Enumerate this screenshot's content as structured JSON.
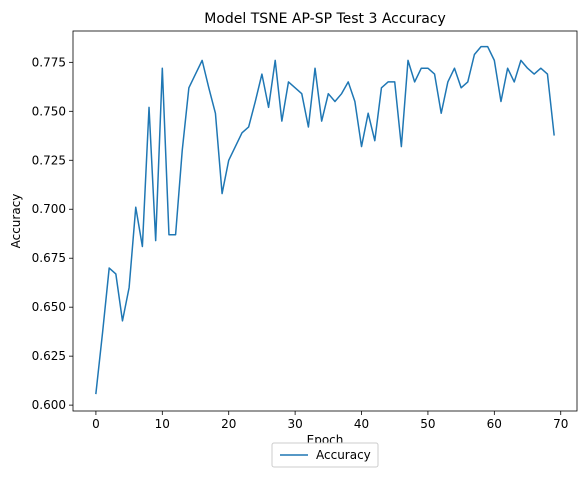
{
  "chart_data": {
    "type": "line",
    "title": "Model TSNE AP-SP Test 3 Accuracy",
    "xlabel": "Epoch",
    "ylabel": "Accuracy",
    "xlim": [
      -3.45,
      72.45
    ],
    "ylim": [
      0.597,
      0.791
    ],
    "x_ticks": [
      0,
      10,
      20,
      30,
      40,
      50,
      60,
      70
    ],
    "x_tick_labels": [
      "0",
      "10",
      "20",
      "30",
      "40",
      "50",
      "60",
      "70"
    ],
    "y_ticks": [
      0.6,
      0.625,
      0.65,
      0.675,
      0.7,
      0.725,
      0.75,
      0.775
    ],
    "y_tick_labels": [
      "0.600",
      "0.625",
      "0.650",
      "0.675",
      "0.700",
      "0.725",
      "0.750",
      "0.775"
    ],
    "grid": false,
    "legend_position": "below",
    "series": [
      {
        "name": "Accuracy",
        "color": "#1f77b4",
        "x": [
          0,
          1,
          2,
          3,
          4,
          5,
          6,
          7,
          8,
          9,
          10,
          11,
          12,
          13,
          14,
          15,
          16,
          17,
          18,
          19,
          20,
          21,
          22,
          23,
          24,
          25,
          26,
          27,
          28,
          29,
          30,
          31,
          32,
          33,
          34,
          35,
          36,
          37,
          38,
          39,
          40,
          41,
          42,
          43,
          44,
          45,
          46,
          47,
          48,
          49,
          50,
          51,
          52,
          53,
          54,
          55,
          56,
          57,
          58,
          59,
          60,
          61,
          62,
          63,
          64,
          65,
          66,
          67,
          68,
          69
        ],
        "values": [
          0.606,
          0.637,
          0.67,
          0.667,
          0.643,
          0.66,
          0.701,
          0.681,
          0.752,
          0.684,
          0.772,
          0.687,
          0.687,
          0.73,
          0.762,
          0.769,
          0.776,
          0.762,
          0.749,
          0.708,
          0.725,
          0.732,
          0.739,
          0.742,
          0.755,
          0.769,
          0.752,
          0.776,
          0.745,
          0.765,
          0.762,
          0.759,
          0.742,
          0.772,
          0.745,
          0.759,
          0.755,
          0.759,
          0.765,
          0.755,
          0.732,
          0.749,
          0.735,
          0.762,
          0.765,
          0.765,
          0.732,
          0.776,
          0.765,
          0.772,
          0.772,
          0.769,
          0.749,
          0.765,
          0.772,
          0.762,
          0.765,
          0.779,
          0.783,
          0.783,
          0.776,
          0.755,
          0.772,
          0.765,
          0.776,
          0.772,
          0.769,
          0.772,
          0.769,
          0.738
        ]
      }
    ]
  }
}
